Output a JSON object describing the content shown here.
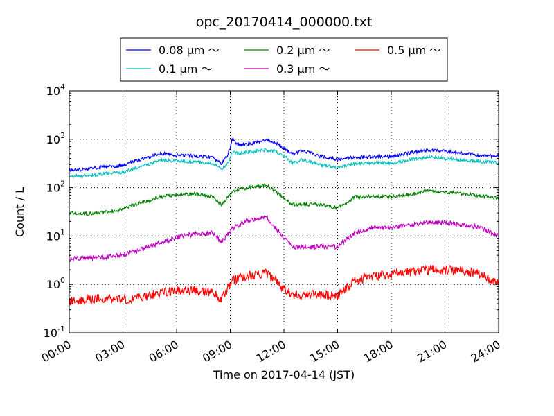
{
  "chart_data": {
    "type": "line",
    "title": "opc_20170414_000000.txt",
    "xlabel": "Time on 2017-04-14 (JST)",
    "ylabel": "Count / L",
    "yscale": "log",
    "xlim": [
      0,
      24
    ],
    "ylim": [
      0.1,
      10000
    ],
    "grid": true,
    "legend_position": "top-center, above plot",
    "x_ticks": [
      "00:00",
      "03:00",
      "06:00",
      "09:00",
      "12:00",
      "15:00",
      "18:00",
      "21:00",
      "24:00"
    ],
    "y_ticks": [
      {
        "value": 0.1,
        "base": "10",
        "exp": "-1"
      },
      {
        "value": 1,
        "base": "10",
        "exp": "0"
      },
      {
        "value": 10,
        "base": "10",
        "exp": "1"
      },
      {
        "value": 100,
        "base": "10",
        "exp": "2"
      },
      {
        "value": 1000,
        "base": "10",
        "exp": "3"
      },
      {
        "value": 10000,
        "base": "10",
        "exp": "4"
      }
    ],
    "series": [
      {
        "name": "0.08 μm ～",
        "color": "#0000ff",
        "x": [
          0,
          1,
          2,
          2.5,
          3,
          4,
          5,
          5.5,
          6,
          7,
          8,
          8.5,
          8.9,
          9.1,
          9.5,
          10,
          11,
          11.5,
          12,
          12.5,
          13,
          14,
          15,
          16,
          17,
          18,
          19,
          20,
          21,
          22,
          23,
          24
        ],
        "y": [
          230,
          240,
          270,
          270,
          290,
          380,
          500,
          500,
          470,
          450,
          420,
          310,
          500,
          1000,
          750,
          800,
          950,
          850,
          650,
          480,
          600,
          450,
          380,
          420,
          440,
          430,
          520,
          600,
          560,
          520,
          460,
          450
        ]
      },
      {
        "name": "0.1 μm ～",
        "color": "#00bfbf",
        "x": [
          0,
          1,
          2,
          2.5,
          3,
          4,
          5,
          5.5,
          6,
          7,
          8,
          8.5,
          8.9,
          9.1,
          9.5,
          10,
          11,
          11.5,
          12,
          12.5,
          13,
          14,
          15,
          16,
          17,
          18,
          19,
          20,
          21,
          22,
          23,
          24
        ],
        "y": [
          170,
          175,
          195,
          200,
          210,
          270,
          360,
          370,
          350,
          340,
          320,
          240,
          330,
          540,
          500,
          550,
          600,
          560,
          450,
          320,
          380,
          300,
          260,
          320,
          320,
          320,
          380,
          430,
          400,
          370,
          340,
          330
        ]
      },
      {
        "name": "0.2 μm ～",
        "color": "#008000",
        "x": [
          0,
          1,
          2,
          2.5,
          3,
          4,
          5,
          5.5,
          6,
          7,
          8,
          8.5,
          8.9,
          9.1,
          9.5,
          10,
          11,
          11.5,
          12,
          12.5,
          13,
          14,
          15,
          16,
          17,
          18,
          19,
          20,
          21,
          22,
          23,
          24
        ],
        "y": [
          30,
          29,
          32,
          33,
          37,
          48,
          63,
          68,
          72,
          75,
          65,
          45,
          65,
          80,
          90,
          100,
          115,
          85,
          60,
          45,
          45,
          45,
          38,
          65,
          65,
          65,
          72,
          85,
          80,
          75,
          68,
          60
        ]
      },
      {
        "name": "0.3 μm ～",
        "color": "#bf00bf",
        "x": [
          0,
          1,
          2,
          2.5,
          3,
          4,
          5,
          5.5,
          6,
          7,
          8,
          8.5,
          8.9,
          9.1,
          9.5,
          10,
          11,
          11.5,
          12,
          12.5,
          13,
          14,
          15,
          16,
          17,
          18,
          19,
          20,
          21,
          22,
          23,
          24
        ],
        "y": [
          3.4,
          3.5,
          3.7,
          3.8,
          4.1,
          5.2,
          7,
          8,
          9.5,
          11,
          11.5,
          7.5,
          11,
          14,
          17,
          21,
          25,
          15,
          9,
          6,
          6,
          6,
          6,
          12,
          15,
          15,
          17,
          19,
          19,
          17,
          15,
          10
        ]
      },
      {
        "name": "0.5 μm ～",
        "color": "#ff0000",
        "x": [
          0,
          1,
          2,
          2.5,
          3,
          4,
          5,
          5.5,
          6,
          7,
          8,
          8.5,
          8.9,
          9.1,
          9.5,
          10,
          11,
          11.5,
          12,
          12.5,
          13,
          14,
          15,
          16,
          17,
          18,
          19,
          20,
          21,
          22,
          23,
          24
        ],
        "y": [
          0.45,
          0.5,
          0.5,
          0.5,
          0.5,
          0.55,
          0.65,
          0.7,
          0.75,
          0.75,
          0.7,
          0.5,
          0.9,
          1.2,
          1.4,
          1.5,
          1.7,
          1.2,
          0.75,
          0.6,
          0.6,
          0.6,
          0.6,
          1.2,
          1.5,
          1.6,
          1.8,
          2.0,
          2.0,
          1.9,
          1.6,
          1.0
        ]
      }
    ]
  }
}
